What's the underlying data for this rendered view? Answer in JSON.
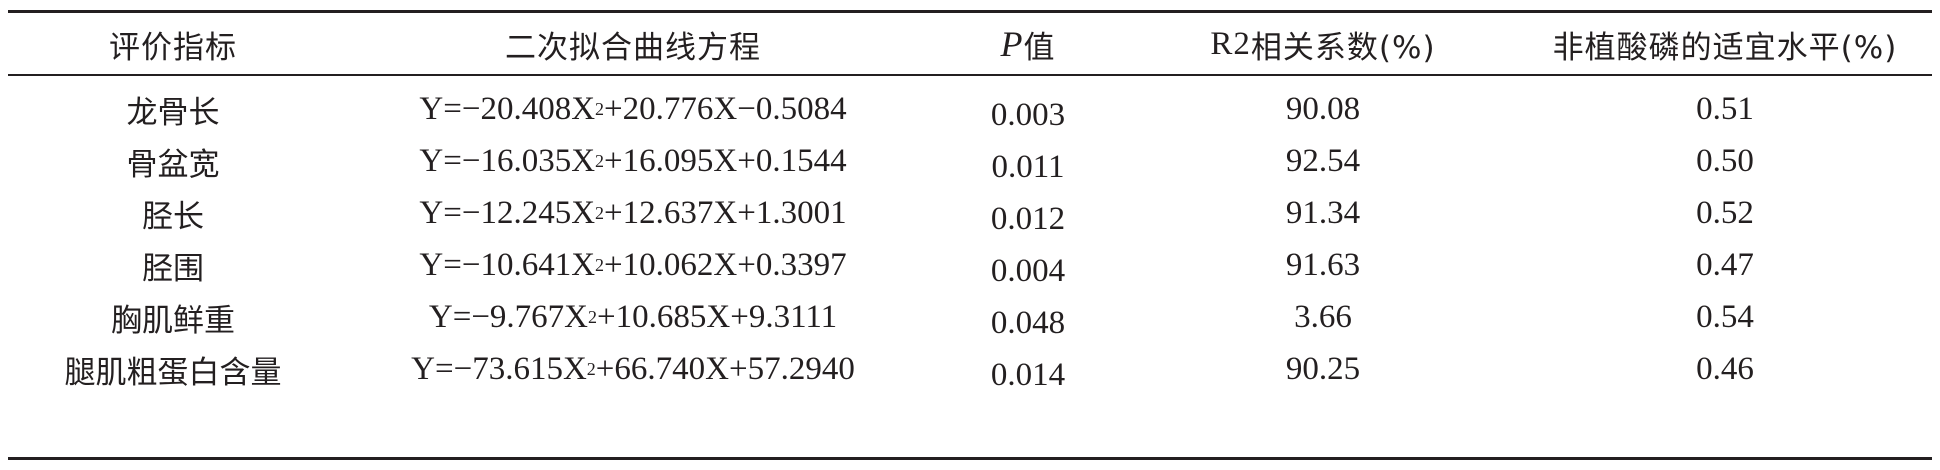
{
  "header": {
    "col1": "评价指标",
    "col2": "二次拟合曲线方程",
    "col3_italic": "P",
    "col3_rest": "值",
    "col4_pre": "R",
    "col4_sup": "2",
    "col4_post": " 相关系数(%)",
    "col5": "非植酸磷的适宜水平(%)"
  },
  "rows": [
    {
      "indicator": "龙骨长",
      "eq_a": "Y=−20.408X",
      "eq_sup": "2",
      "eq_b": "+20.776X−0.5084",
      "p": "0.003",
      "r2": "90.08",
      "level": "0.51"
    },
    {
      "indicator": "骨盆宽",
      "eq_a": "Y=−16.035X",
      "eq_sup": "2",
      "eq_b": "+16.095X+0.1544",
      "p": "0.011",
      "r2": "92.54",
      "level": "0.50"
    },
    {
      "indicator": "胫长",
      "eq_a": "Y=−12.245X",
      "eq_sup": "2",
      "eq_b": "+12.637X+1.3001",
      "p": "0.012",
      "r2": "91.34",
      "level": "0.52"
    },
    {
      "indicator": "胫围",
      "eq_a": "Y=−10.641X",
      "eq_sup": "2",
      "eq_b": "+10.062X+0.3397",
      "p": "0.004",
      "r2": "91.63",
      "level": "0.47"
    },
    {
      "indicator": "胸肌鲜重",
      "eq_a": "Y=−9.767X",
      "eq_sup": "2",
      "eq_b": "+10.685X+9.3111",
      "p": "0.048",
      "r2": "3.66",
      "level": "0.54"
    },
    {
      "indicator": "腿肌粗蛋白含量",
      "eq_a": "Y=−73.615X",
      "eq_sup": "2",
      "eq_b": "+66.740X+57.2940",
      "p": "0.014",
      "r2": "90.25",
      "level": "0.46"
    }
  ]
}
